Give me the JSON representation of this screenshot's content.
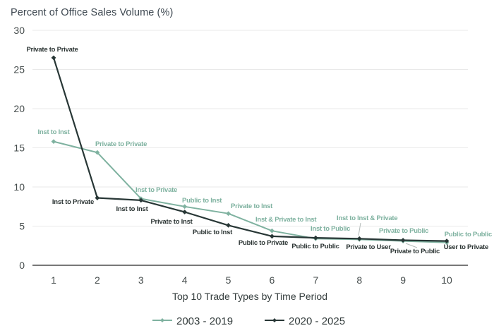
{
  "page": {
    "background": "#ffffff"
  },
  "chart_data": {
    "type": "line",
    "title": "Percent of Office Sales Volume (%)",
    "xlabel": "Top 10 Trade Types by Time Period",
    "ylabel": "",
    "x": [
      1,
      2,
      3,
      4,
      5,
      6,
      7,
      8,
      9,
      10
    ],
    "ylim": [
      0,
      30
    ],
    "yticks": [
      0,
      5,
      10,
      15,
      20,
      25,
      30
    ],
    "grid": true,
    "legend_position": "bottom-center",
    "series": [
      {
        "name": "2003 - 2019",
        "color": "#7fb2a0",
        "marker": "diamond",
        "values": [
          15.8,
          14.4,
          8.5,
          7.5,
          6.6,
          4.4,
          3.4,
          3.3,
          3.1,
          2.9
        ],
        "point_labels": [
          "Inst to Inst",
          "Private to Private",
          "Inst to Private",
          "Public to Inst",
          "Private to Inst",
          "Inst & Private to Inst",
          "Inst to Public",
          "Inst to Inst & Private",
          "Private to Public",
          "Public to Public"
        ]
      },
      {
        "name": "2020 - 2025",
        "color": "#283736",
        "marker": "diamond",
        "values": [
          26.5,
          8.6,
          8.3,
          6.8,
          5.1,
          3.7,
          3.5,
          3.4,
          3.2,
          3.1
        ],
        "point_labels": [
          "Private to Private",
          "Inst to Private",
          "Inst to Inst",
          "Private to Inst",
          "Public to Inst",
          "Public to Private",
          "Public to Public",
          "Private to User",
          "Private to Public",
          "User to Private"
        ]
      }
    ]
  }
}
